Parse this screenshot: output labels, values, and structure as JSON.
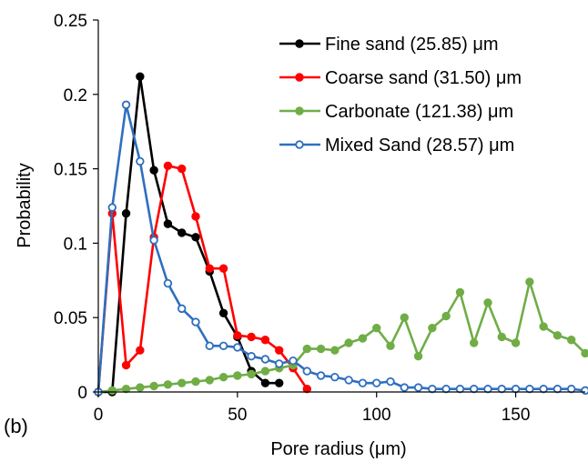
{
  "panel_label": "(b)",
  "chart_data": {
    "type": "line",
    "xlabel": "Pore radius (μm)",
    "ylabel": "Probability",
    "xlim": [
      0,
      175
    ],
    "ylim": [
      0,
      0.25
    ],
    "xticks": [
      0,
      50,
      100,
      150
    ],
    "xtick_labels": [
      "0",
      "50",
      "100",
      "150"
    ],
    "yticks": [
      0,
      0.05,
      0.1,
      0.15,
      0.2,
      0.25
    ],
    "ytick_labels": [
      "0",
      "0.05",
      "0.1",
      "0.15",
      "0.2",
      "0.25"
    ],
    "grid": false,
    "legend_position": "top-right",
    "series": [
      {
        "name": "Fine sand (25.85) μm",
        "color": "#000000",
        "marker": "filled-circle",
        "x": [
          0,
          5,
          10,
          15,
          20,
          25,
          30,
          35,
          40,
          45,
          50,
          55,
          60,
          65
        ],
        "y": [
          0,
          0,
          0.12,
          0.212,
          0.149,
          0.113,
          0.107,
          0.104,
          0.081,
          0.053,
          0.037,
          0.014,
          0.006,
          0.006
        ]
      },
      {
        "name": "Coarse sand (31.50) μm",
        "color": "#ff0000",
        "marker": "filled-circle",
        "x": [
          0,
          5,
          10,
          15,
          20,
          25,
          30,
          35,
          40,
          45,
          50,
          55,
          60,
          65,
          70,
          75
        ],
        "y": [
          0,
          0.12,
          0.018,
          0.028,
          0.104,
          0.152,
          0.15,
          0.118,
          0.083,
          0.083,
          0.038,
          0.037,
          0.035,
          0.028,
          0.016,
          0.002
        ]
      },
      {
        "name": "Carbonate (121.38) μm",
        "color": "#70ad47",
        "marker": "filled-circle",
        "x": [
          0,
          5,
          10,
          15,
          20,
          25,
          30,
          35,
          40,
          45,
          50,
          55,
          60,
          65,
          70,
          75,
          80,
          85,
          90,
          95,
          100,
          105,
          110,
          115,
          120,
          125,
          130,
          135,
          140,
          145,
          150,
          155,
          160,
          165,
          170,
          175
        ],
        "y": [
          0,
          0.001,
          0.002,
          0.003,
          0.004,
          0.005,
          0.006,
          0.007,
          0.008,
          0.01,
          0.011,
          0.012,
          0.014,
          0.016,
          0.018,
          0.029,
          0.029,
          0.028,
          0.033,
          0.036,
          0.043,
          0.031,
          0.05,
          0.024,
          0.043,
          0.051,
          0.067,
          0.033,
          0.06,
          0.037,
          0.033,
          0.074,
          0.044,
          0.038,
          0.035,
          0.026
        ]
      },
      {
        "name": "Mixed Sand (28.57) μm",
        "color": "#2f6fbf",
        "marker": "open-circle",
        "x": [
          0,
          5,
          10,
          15,
          20,
          25,
          30,
          35,
          40,
          45,
          50,
          55,
          60,
          65,
          70,
          75,
          80,
          85,
          90,
          95,
          100,
          105,
          110,
          115,
          120,
          125,
          130,
          135,
          140,
          145,
          150,
          155,
          160,
          165,
          170,
          175
        ],
        "y": [
          0,
          0.124,
          0.193,
          0.155,
          0.102,
          0.073,
          0.056,
          0.047,
          0.031,
          0.031,
          0.03,
          0.024,
          0.022,
          0.019,
          0.021,
          0.014,
          0.011,
          0.01,
          0.008,
          0.006,
          0.006,
          0.007,
          0.003,
          0.003,
          0.002,
          0.002,
          0.002,
          0.002,
          0.002,
          0.002,
          0.002,
          0.002,
          0.002,
          0.002,
          0.002,
          0.001
        ]
      }
    ]
  }
}
